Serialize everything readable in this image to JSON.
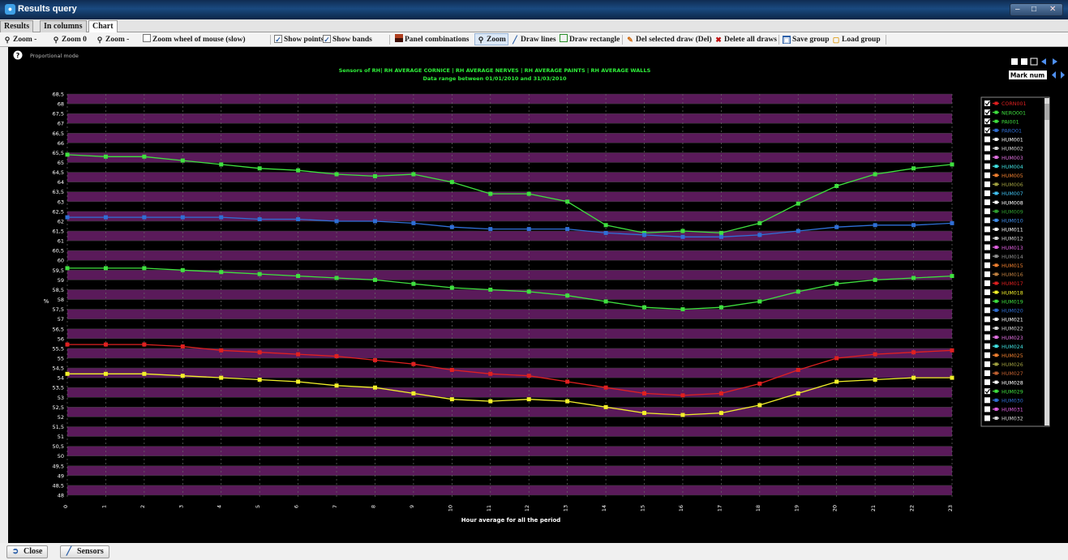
{
  "window": {
    "title": "Results query"
  },
  "tabs": [
    {
      "label": "Results",
      "active": false
    },
    {
      "label": "In columns",
      "active": false
    },
    {
      "label": "Chart",
      "active": true
    }
  ],
  "toolbar": {
    "zoom_minus": "Zoom -",
    "zoom_0": "Zoom 0",
    "zoom_minus_2": "Zoom -",
    "zoom_wheel": "Zoom wheel of mouse (slow)",
    "show_points": "Show points",
    "show_bands": "Show bands",
    "panel_combinations": "Panel combinations",
    "zoom": "Zoom",
    "draw_lines": "Draw lines",
    "draw_rectangle": "Draw rectangle",
    "del_selected": "Del selected draw (Del)",
    "delete_all": "Delete all draws",
    "save_group": "Save group",
    "load_group": "Load group"
  },
  "chart_header": {
    "mode_label": "Proportional mode",
    "mark_num": "Mark num"
  },
  "bottom": {
    "close": "Close",
    "sensors": "Sensors"
  },
  "colors": {
    "band": "#5a1a5a",
    "title": "#2ef03a",
    "series_green": "#3fe03f",
    "series_blue": "#2f6fd6",
    "series_red": "#e02020",
    "series_yellow": "#f2f02a"
  },
  "chart_data": {
    "type": "line",
    "title": "Sensors of RH| RH AVERAGE CORNICE | RH AVERAGE NERVES | RH AVERAGE PAINTS | RH AVERAGE WALLS",
    "subtitle": "Data range between 01/01/2010 and 31/03/2010",
    "xlabel": "Hour average for all the period",
    "ylabel": "%",
    "x": [
      0,
      1,
      2,
      3,
      4,
      5,
      6,
      7,
      8,
      9,
      10,
      11,
      12,
      13,
      14,
      15,
      16,
      17,
      18,
      19,
      20,
      21,
      22,
      23
    ],
    "ylim": [
      48,
      68.5
    ],
    "y_ticks": [
      "68,5",
      "68",
      "67,5",
      "67",
      "66,5",
      "66",
      "65,5",
      "65",
      "64,5",
      "64",
      "63,5",
      "63",
      "62,5",
      "62",
      "61,5",
      "61",
      "60,5",
      "60",
      "59,5",
      "59",
      "58,5",
      "58",
      "57,5",
      "57",
      "56,5",
      "56",
      "55,5",
      "55",
      "54,5",
      "54",
      "53,5",
      "53",
      "52,5",
      "52",
      "51,5",
      "51",
      "50,5",
      "50",
      "49,5",
      "49",
      "48,5",
      "48"
    ],
    "grid": true,
    "bands": true,
    "legend_position": "right",
    "series": [
      {
        "color": "#3fe03f",
        "values": [
          65.4,
          65.3,
          65.3,
          65.1,
          64.9,
          64.7,
          64.6,
          64.4,
          64.3,
          64.4,
          64.0,
          63.4,
          63.4,
          63.0,
          61.8,
          61.4,
          61.5,
          61.4,
          61.9,
          62.9,
          63.8,
          64.4,
          64.7,
          64.9
        ]
      },
      {
        "color": "#2f6fd6",
        "values": [
          62.2,
          62.2,
          62.2,
          62.2,
          62.2,
          62.1,
          62.1,
          62.0,
          62.0,
          61.9,
          61.7,
          61.6,
          61.6,
          61.6,
          61.4,
          61.3,
          61.2,
          61.2,
          61.3,
          61.5,
          61.7,
          61.8,
          61.8,
          61.9
        ]
      },
      {
        "color": "#3fe03f",
        "values": [
          59.6,
          59.6,
          59.6,
          59.5,
          59.4,
          59.3,
          59.2,
          59.1,
          59.0,
          58.8,
          58.6,
          58.5,
          58.4,
          58.2,
          57.9,
          57.6,
          57.5,
          57.6,
          57.9,
          58.4,
          58.8,
          59.0,
          59.1,
          59.2
        ]
      },
      {
        "color": "#e02020",
        "values": [
          55.7,
          55.7,
          55.7,
          55.6,
          55.4,
          55.3,
          55.2,
          55.1,
          54.9,
          54.7,
          54.4,
          54.2,
          54.1,
          53.8,
          53.5,
          53.2,
          53.1,
          53.2,
          53.7,
          54.4,
          55.0,
          55.2,
          55.3,
          55.4
        ]
      },
      {
        "color": "#f2f02a",
        "values": [
          54.2,
          54.2,
          54.2,
          54.1,
          54.0,
          53.9,
          53.8,
          53.6,
          53.5,
          53.2,
          52.9,
          52.8,
          52.9,
          52.8,
          52.5,
          52.2,
          52.1,
          52.2,
          52.6,
          53.2,
          53.8,
          53.9,
          54.0,
          54.0
        ]
      }
    ],
    "legend": [
      {
        "label": "CORN001",
        "color": "#e02020",
        "checked": true
      },
      {
        "label": "NERO001",
        "color": "#3fe03f",
        "checked": true
      },
      {
        "label": "PAI001",
        "color": "#3fe03f",
        "checked": true
      },
      {
        "label": "PARO01",
        "color": "#2f6fd6",
        "checked": true
      },
      {
        "label": "HUM001",
        "color": "#ffffff",
        "checked": false
      },
      {
        "label": "HUM002",
        "color": "#d8d8d8",
        "checked": false
      },
      {
        "label": "HUM003",
        "color": "#e070e0",
        "checked": false
      },
      {
        "label": "HUM004",
        "color": "#40e0e0",
        "checked": false
      },
      {
        "label": "HUM005",
        "color": "#f08030",
        "checked": false
      },
      {
        "label": "HUM006",
        "color": "#a0a040",
        "checked": false
      },
      {
        "label": "HUM007",
        "color": "#40c0f0",
        "checked": false
      },
      {
        "label": "HUM008",
        "color": "#ffffff",
        "checked": false
      },
      {
        "label": "HUM009",
        "color": "#30a030",
        "checked": false
      },
      {
        "label": "HUM010",
        "color": "#4090f0",
        "checked": false
      },
      {
        "label": "HUM011",
        "color": "#ffffff",
        "checked": false
      },
      {
        "label": "HUM012",
        "color": "#d8d8d8",
        "checked": false
      },
      {
        "label": "HUM013",
        "color": "#e060e0",
        "checked": false
      },
      {
        "label": "HUM014",
        "color": "#909090",
        "checked": false
      },
      {
        "label": "HUM015",
        "color": "#f08030",
        "checked": false
      },
      {
        "label": "HUM016",
        "color": "#c08040",
        "checked": false
      },
      {
        "label": "HUM017",
        "color": "#e02020",
        "checked": false
      },
      {
        "label": "HUM018",
        "color": "#f2f02a",
        "checked": false
      },
      {
        "label": "HUM019",
        "color": "#3fe03f",
        "checked": false
      },
      {
        "label": "HUM020",
        "color": "#2f6fd6",
        "checked": false
      },
      {
        "label": "HUM021",
        "color": "#ffffff",
        "checked": false
      },
      {
        "label": "HUM022",
        "color": "#d8d8d8",
        "checked": false
      },
      {
        "label": "HUM023",
        "color": "#e070e0",
        "checked": false
      },
      {
        "label": "HUM024",
        "color": "#40e0e0",
        "checked": false
      },
      {
        "label": "HUM025",
        "color": "#f08030",
        "checked": false
      },
      {
        "label": "HUM026",
        "color": "#a0a040",
        "checked": false
      },
      {
        "label": "HUM027",
        "color": "#c06030",
        "checked": false
      },
      {
        "label": "HUM028",
        "color": "#ffffff",
        "checked": false
      },
      {
        "label": "HUM029",
        "color": "#3fe03f",
        "checked": true
      },
      {
        "label": "HUM030",
        "color": "#2f6fd6",
        "checked": false
      },
      {
        "label": "HUM031",
        "color": "#e060e0",
        "checked": false
      },
      {
        "label": "HUM032",
        "color": "#d8d8d8",
        "checked": false
      }
    ]
  }
}
